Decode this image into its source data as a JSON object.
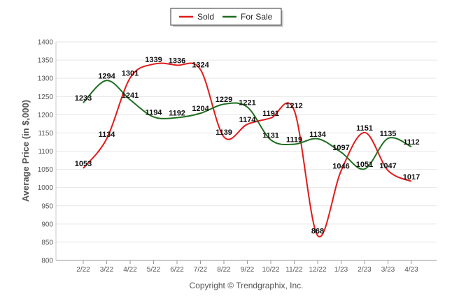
{
  "chart_data": {
    "type": "line",
    "categories": [
      "2/22",
      "3/22",
      "4/22",
      "5/22",
      "6/22",
      "7/22",
      "8/22",
      "9/22",
      "10/22",
      "11/22",
      "12/22",
      "1/23",
      "2/23",
      "3/23",
      "4/23"
    ],
    "series": [
      {
        "name": "Sold",
        "color": "#e11b1b",
        "values": [
          1053,
          1134,
          1301,
          1339,
          1336,
          1324,
          1139,
          1174,
          1191,
          1212,
          868,
          1046,
          1151,
          1047,
          1017
        ]
      },
      {
        "name": "For Sale",
        "color": "#1f6e1f",
        "values": [
          1233,
          1294,
          1241,
          1194,
          1192,
          1204,
          1229,
          1221,
          1131,
          1119,
          1134,
          1097,
          1051,
          1135,
          1112
        ]
      }
    ],
    "ylabel": "Average Price (in $,000)",
    "xlabel": "",
    "ylim": [
      800,
      1400
    ],
    "yticks": [
      800,
      850,
      900,
      950,
      1000,
      1050,
      1100,
      1150,
      1200,
      1250,
      1300,
      1350,
      1400
    ],
    "grid": true,
    "legend_position": "top-center",
    "caption": "Copyright © Trendgraphix, Inc."
  }
}
